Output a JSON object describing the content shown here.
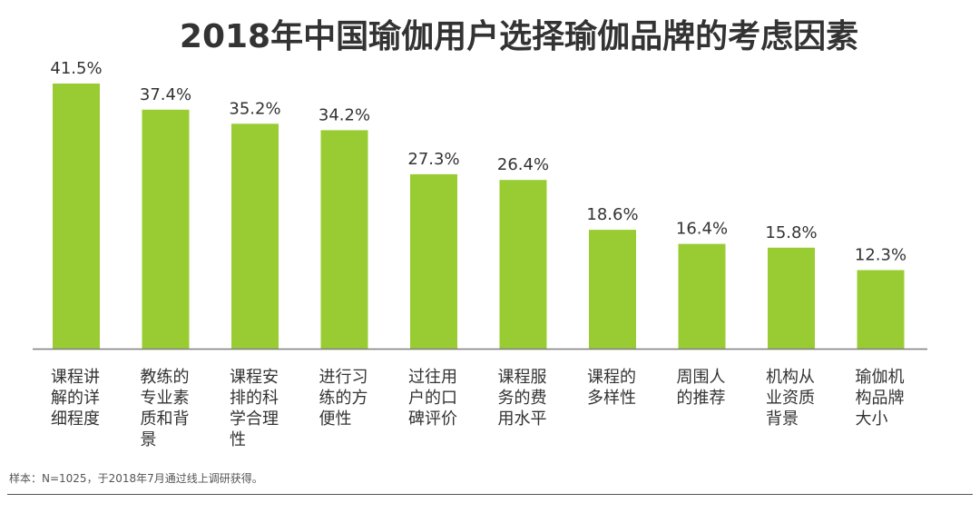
{
  "chart_data": {
    "type": "bar",
    "title": "2018年中国瑜伽用户选择瑜伽品牌的考虑因素",
    "categories": [
      "课程讲解的详细程度",
      "教练的专业素质和背景",
      "课程安排的科学合理性",
      "进行习练的方便性",
      "过往用户的口碑评价",
      "课程服务的费用水平",
      "课程的多样性",
      "周围人的推荐",
      "机构从业资质背景",
      "瑜伽机构品牌大小"
    ],
    "category_lines": [
      [
        "课程讲",
        "解的详",
        "细程度"
      ],
      [
        "教练的",
        "专业素",
        "质和背",
        "景"
      ],
      [
        "课程安",
        "排的科",
        "学合理",
        "性"
      ],
      [
        "进行习",
        "练的方",
        "便性"
      ],
      [
        "过往用",
        "户的口",
        "碑评价"
      ],
      [
        "课程服",
        "务的费",
        "用水平"
      ],
      [
        "课程的",
        "多样性"
      ],
      [
        "周围人",
        "的推荐"
      ],
      [
        "机构从",
        "业资质",
        "背景"
      ],
      [
        "瑜伽机",
        "构品牌",
        "大小"
      ]
    ],
    "values": [
      41.5,
      37.4,
      35.2,
      34.2,
      27.3,
      26.4,
      18.6,
      16.4,
      15.8,
      12.3
    ],
    "value_labels": [
      "41.5%",
      "37.4%",
      "35.2%",
      "34.2%",
      "27.3%",
      "26.4%",
      "18.6%",
      "16.4%",
      "15.8%",
      "12.3%"
    ],
    "unit": "%",
    "ylim": [
      0,
      41.5
    ],
    "grid": false,
    "bar_color": "#99CC33",
    "axis_color": "#7f7f7f",
    "note": "样本：N=1025，于2018年7月通过线上调研获得。"
  }
}
